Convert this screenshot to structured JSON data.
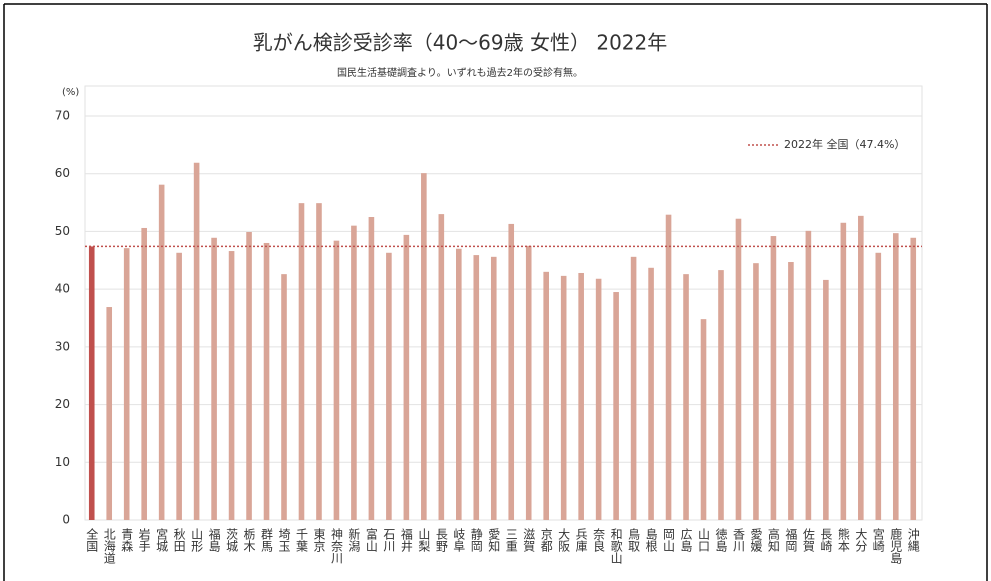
{
  "chart_data": {
    "type": "bar",
    "title": "乳がん検診受診率（40〜69歳 女性） 2022年",
    "subtitle": "国民生活基礎調査より。いずれも過去2年の受診有無。",
    "y_label": "(%)",
    "categories": [
      "全国",
      "北海道",
      "青森",
      "岩手",
      "宮城",
      "秋田",
      "山形",
      "福島",
      "茨城",
      "栃木",
      "群馬",
      "埼玉",
      "千葉",
      "東京",
      "神奈川",
      "新潟",
      "富山",
      "石川",
      "福井",
      "山梨",
      "長野",
      "岐阜",
      "静岡",
      "愛知",
      "三重",
      "滋賀",
      "京都",
      "大阪",
      "兵庫",
      "奈良",
      "和歌山",
      "鳥取",
      "島根",
      "岡山",
      "広島",
      "山口",
      "徳島",
      "香川",
      "愛媛",
      "高知",
      "福岡",
      "佐賀",
      "長崎",
      "熊本",
      "大分",
      "宮崎",
      "鹿児島",
      "沖縄"
    ],
    "values": [
      47.4,
      36.9,
      47.1,
      50.6,
      58.1,
      46.3,
      61.9,
      48.9,
      46.6,
      49.9,
      48.0,
      42.6,
      54.9,
      54.9,
      48.4,
      51.0,
      52.5,
      46.3,
      49.4,
      60.1,
      53.0,
      47.0,
      45.9,
      45.6,
      51.3,
      47.5,
      43.0,
      42.3,
      42.8,
      41.8,
      39.5,
      45.6,
      43.7,
      52.9,
      42.6,
      34.8,
      43.3,
      52.2,
      44.5,
      49.2,
      44.7,
      50.1,
      41.6,
      51.5,
      52.7,
      46.3,
      49.7,
      48.9
    ],
    "color": "#d9a597",
    "highlight_color": "#c0504d",
    "reference": {
      "name": "2022年 全国（47.4%）",
      "value": 47.4,
      "color": "#c0504d"
    },
    "ylim": [
      0,
      70
    ],
    "yticks": [
      0,
      10,
      20,
      30,
      40,
      50,
      60,
      70
    ],
    "grid": true
  }
}
